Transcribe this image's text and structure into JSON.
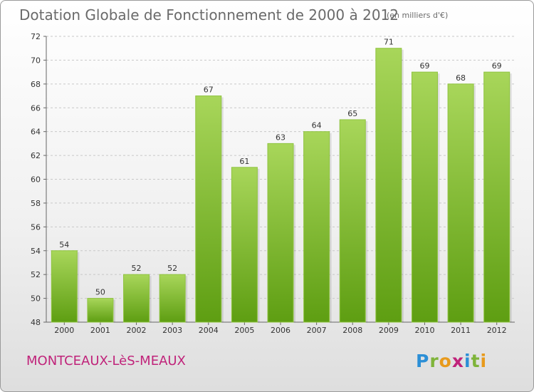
{
  "title": "Dotation Globale de Fonctionnement de 2000 à 2012",
  "subtitle": "(en milliers d'€)",
  "town": "MONTCEAUX-LèS-MEAUX",
  "logo": {
    "letters": [
      "P",
      "r",
      "o",
      "x",
      "i",
      "t",
      "i"
    ],
    "colors": [
      "#2c8fd6",
      "#7fb43a",
      "#e89a1c",
      "#c0237a",
      "#2c8fd6",
      "#7fb43a",
      "#e89a1c"
    ]
  },
  "colors": {
    "bar_top": "#a8d65a",
    "bar_bottom": "#5e9e12",
    "town": "#c0237a"
  },
  "chart_data": {
    "type": "bar",
    "categories": [
      "2000",
      "2001",
      "2002",
      "2003",
      "2004",
      "2005",
      "2006",
      "2007",
      "2008",
      "2009",
      "2010",
      "2011",
      "2012"
    ],
    "values": [
      54,
      50,
      52,
      52,
      67,
      61,
      63,
      64,
      65,
      71,
      69,
      68,
      69
    ],
    "ylim": [
      48,
      72
    ],
    "yticks": [
      48,
      50,
      52,
      54,
      56,
      58,
      60,
      62,
      64,
      66,
      68,
      70,
      72
    ],
    "grid": true,
    "title": "Dotation Globale de Fonctionnement de 2000 à 2012",
    "xlabel": "",
    "ylabel": ""
  }
}
